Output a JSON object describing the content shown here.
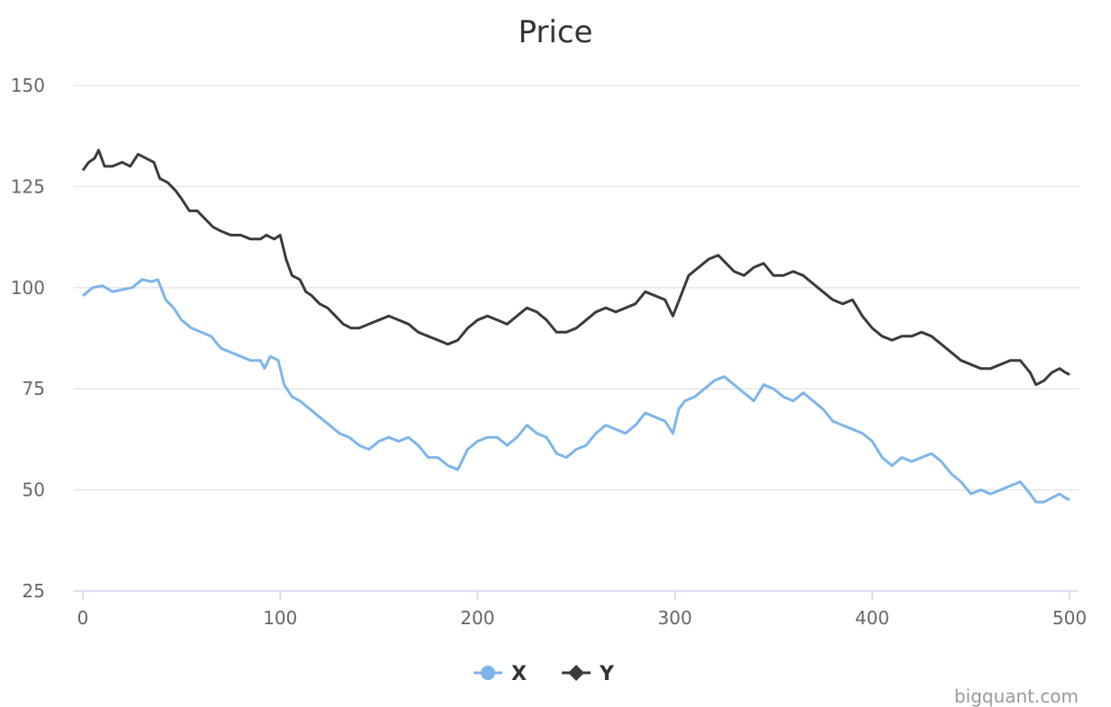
{
  "chart_data": {
    "type": "line",
    "title": "Price",
    "xlabel": "",
    "ylabel": "",
    "xlim": [
      0,
      500
    ],
    "ylim": [
      25,
      150
    ],
    "xticks": [
      0,
      100,
      200,
      300,
      400,
      500
    ],
    "yticks": [
      25,
      50,
      75,
      100,
      125,
      150
    ],
    "grid": "horizontal",
    "legend_position": "bottom-center",
    "series": [
      {
        "name": "X",
        "color": "#7cb5ec",
        "marker": "circle",
        "points": [
          [
            0,
            98
          ],
          [
            5,
            100
          ],
          [
            10,
            100.5
          ],
          [
            15,
            99
          ],
          [
            20,
            99.5
          ],
          [
            25,
            100
          ],
          [
            30,
            102
          ],
          [
            35,
            101.5
          ],
          [
            38,
            102
          ],
          [
            42,
            97
          ],
          [
            46,
            95
          ],
          [
            50,
            92
          ],
          [
            55,
            90
          ],
          [
            60,
            89
          ],
          [
            65,
            88
          ],
          [
            70,
            85
          ],
          [
            75,
            84
          ],
          [
            80,
            83
          ],
          [
            85,
            82
          ],
          [
            90,
            82
          ],
          [
            92,
            80
          ],
          [
            95,
            83
          ],
          [
            99,
            82
          ],
          [
            102,
            76
          ],
          [
            106,
            73
          ],
          [
            110,
            72
          ],
          [
            115,
            70
          ],
          [
            120,
            68
          ],
          [
            125,
            66
          ],
          [
            130,
            64
          ],
          [
            135,
            63
          ],
          [
            140,
            61
          ],
          [
            145,
            60
          ],
          [
            150,
            62
          ],
          [
            155,
            63
          ],
          [
            160,
            62
          ],
          [
            165,
            63
          ],
          [
            170,
            61
          ],
          [
            175,
            58
          ],
          [
            180,
            58
          ],
          [
            185,
            56
          ],
          [
            190,
            55
          ],
          [
            195,
            60
          ],
          [
            200,
            62
          ],
          [
            205,
            63
          ],
          [
            210,
            63
          ],
          [
            215,
            61
          ],
          [
            220,
            63
          ],
          [
            225,
            66
          ],
          [
            230,
            64
          ],
          [
            235,
            63
          ],
          [
            240,
            59
          ],
          [
            245,
            58
          ],
          [
            250,
            60
          ],
          [
            255,
            61
          ],
          [
            260,
            64
          ],
          [
            265,
            66
          ],
          [
            270,
            65
          ],
          [
            275,
            64
          ],
          [
            280,
            66
          ],
          [
            285,
            69
          ],
          [
            290,
            68
          ],
          [
            295,
            67
          ],
          [
            299,
            64
          ],
          [
            302,
            70
          ],
          [
            305,
            72
          ],
          [
            310,
            73
          ],
          [
            315,
            75
          ],
          [
            320,
            77
          ],
          [
            325,
            78
          ],
          [
            330,
            76
          ],
          [
            335,
            74
          ],
          [
            340,
            72
          ],
          [
            345,
            76
          ],
          [
            350,
            75
          ],
          [
            355,
            73
          ],
          [
            360,
            72
          ],
          [
            365,
            74
          ],
          [
            370,
            72
          ],
          [
            375,
            70
          ],
          [
            380,
            67
          ],
          [
            385,
            66
          ],
          [
            390,
            65
          ],
          [
            395,
            64
          ],
          [
            400,
            62
          ],
          [
            405,
            58
          ],
          [
            410,
            56
          ],
          [
            415,
            58
          ],
          [
            420,
            57
          ],
          [
            425,
            58
          ],
          [
            430,
            59
          ],
          [
            435,
            57
          ],
          [
            440,
            54
          ],
          [
            445,
            52
          ],
          [
            450,
            49
          ],
          [
            455,
            50
          ],
          [
            460,
            49
          ],
          [
            465,
            50
          ],
          [
            470,
            51
          ],
          [
            475,
            52
          ],
          [
            480,
            49
          ],
          [
            483,
            47
          ],
          [
            487,
            47
          ],
          [
            491,
            48
          ],
          [
            495,
            49
          ],
          [
            498,
            48
          ],
          [
            500,
            47.5
          ]
        ]
      },
      {
        "name": "Y",
        "color": "#3b3b3d",
        "marker": "diamond",
        "points": [
          [
            0,
            129
          ],
          [
            3,
            131
          ],
          [
            6,
            132
          ],
          [
            8,
            134
          ],
          [
            11,
            130
          ],
          [
            15,
            130
          ],
          [
            20,
            131
          ],
          [
            24,
            130
          ],
          [
            28,
            133
          ],
          [
            32,
            132
          ],
          [
            36,
            131
          ],
          [
            39,
            127
          ],
          [
            43,
            126
          ],
          [
            47,
            124
          ],
          [
            50,
            122
          ],
          [
            54,
            119
          ],
          [
            58,
            119
          ],
          [
            62,
            117
          ],
          [
            66,
            115
          ],
          [
            70,
            114
          ],
          [
            75,
            113
          ],
          [
            80,
            113
          ],
          [
            85,
            112
          ],
          [
            90,
            112
          ],
          [
            93,
            113
          ],
          [
            97,
            112
          ],
          [
            100,
            113
          ],
          [
            103,
            107
          ],
          [
            106,
            103
          ],
          [
            110,
            102
          ],
          [
            113,
            99
          ],
          [
            116,
            98
          ],
          [
            120,
            96
          ],
          [
            124,
            95
          ],
          [
            128,
            93
          ],
          [
            132,
            91
          ],
          [
            136,
            90
          ],
          [
            140,
            90
          ],
          [
            145,
            91
          ],
          [
            150,
            92
          ],
          [
            155,
            93
          ],
          [
            160,
            92
          ],
          [
            165,
            91
          ],
          [
            170,
            89
          ],
          [
            175,
            88
          ],
          [
            180,
            87
          ],
          [
            185,
            86
          ],
          [
            190,
            87
          ],
          [
            195,
            90
          ],
          [
            200,
            92
          ],
          [
            205,
            93
          ],
          [
            210,
            92
          ],
          [
            215,
            91
          ],
          [
            220,
            93
          ],
          [
            225,
            95
          ],
          [
            230,
            94
          ],
          [
            235,
            92
          ],
          [
            240,
            89
          ],
          [
            245,
            89
          ],
          [
            250,
            90
          ],
          [
            255,
            92
          ],
          [
            260,
            94
          ],
          [
            265,
            95
          ],
          [
            270,
            94
          ],
          [
            275,
            95
          ],
          [
            280,
            96
          ],
          [
            285,
            99
          ],
          [
            290,
            98
          ],
          [
            295,
            97
          ],
          [
            299,
            93
          ],
          [
            303,
            98
          ],
          [
            307,
            103
          ],
          [
            312,
            105
          ],
          [
            317,
            107
          ],
          [
            322,
            108
          ],
          [
            326,
            106
          ],
          [
            330,
            104
          ],
          [
            335,
            103
          ],
          [
            340,
            105
          ],
          [
            345,
            106
          ],
          [
            350,
            103
          ],
          [
            355,
            103
          ],
          [
            360,
            104
          ],
          [
            365,
            103
          ],
          [
            370,
            101
          ],
          [
            375,
            99
          ],
          [
            380,
            97
          ],
          [
            385,
            96
          ],
          [
            390,
            97
          ],
          [
            395,
            93
          ],
          [
            400,
            90
          ],
          [
            405,
            88
          ],
          [
            410,
            87
          ],
          [
            415,
            88
          ],
          [
            420,
            88
          ],
          [
            425,
            89
          ],
          [
            430,
            88
          ],
          [
            435,
            86
          ],
          [
            440,
            84
          ],
          [
            445,
            82
          ],
          [
            450,
            81
          ],
          [
            455,
            80
          ],
          [
            460,
            80
          ],
          [
            465,
            81
          ],
          [
            470,
            82
          ],
          [
            475,
            82
          ],
          [
            480,
            79
          ],
          [
            483,
            76
          ],
          [
            487,
            77
          ],
          [
            491,
            79
          ],
          [
            495,
            80
          ],
          [
            498,
            79
          ],
          [
            500,
            78.5
          ]
        ]
      }
    ]
  },
  "credits": "bigquant.com"
}
